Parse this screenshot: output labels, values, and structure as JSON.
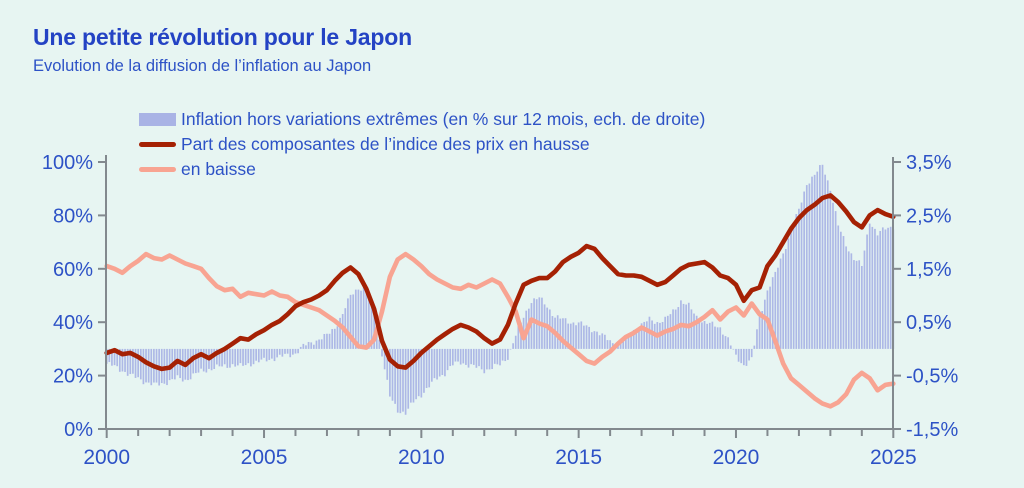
{
  "header": {
    "title": "Une petite révolution pour le Japon",
    "subtitle": "Evolution de la diffusion de l’inflation au Japon"
  },
  "legend": [
    {
      "label": "Inflation hors variations extrêmes (en % sur 12 mois, ech. de droite)",
      "swatch": "bar",
      "color": "#a9b3e5"
    },
    {
      "label": "Part des composantes de l’indice des prix en hausse",
      "swatch": "line",
      "color": "#a52104"
    },
    {
      "label": "en baisse",
      "swatch": "line",
      "color": "#f8a492"
    }
  ],
  "colors": {
    "background": "#e7f5f2",
    "text_blue": "#2d52c6",
    "axis_gray": "#82898e",
    "bars": "#a9b3e5",
    "hausse": "#a52104",
    "baisse": "#f8a492"
  },
  "chart_data": {
    "type": "bar+line combo",
    "title": "Evolution de la diffusion de l'inflation au Japon",
    "x_start": 2000,
    "x_end": 2025,
    "x_step_years": 0.25,
    "grid": false,
    "legend_position": "top-left",
    "x_ticks": [
      {
        "v": 2000,
        "label": "2000"
      },
      {
        "v": 2005,
        "label": "2005"
      },
      {
        "v": 2010,
        "label": "2010"
      },
      {
        "v": 2015,
        "label": "2015"
      },
      {
        "v": 2020,
        "label": "2020"
      },
      {
        "v": 2025,
        "label": "2025"
      }
    ],
    "left_axis": {
      "min": 0,
      "max": 100,
      "ticks": [
        {
          "v": 0,
          "label": "0%"
        },
        {
          "v": 20,
          "label": "20%"
        },
        {
          "v": 40,
          "label": "40%"
        },
        {
          "v": 60,
          "label": "60%"
        },
        {
          "v": 80,
          "label": "80%"
        },
        {
          "v": 100,
          "label": "100%"
        }
      ]
    },
    "right_axis": {
      "min": -1.5,
      "max": 3.5,
      "ticks": [
        {
          "v": -1.5,
          "label": "-1,5%"
        },
        {
          "v": -0.5,
          "label": "-0,5%"
        },
        {
          "v": 0.5,
          "label": "0,5%"
        },
        {
          "v": 1.5,
          "label": "1,5%"
        },
        {
          "v": 2.5,
          "label": "2,5%"
        },
        {
          "v": 3.5,
          "label": "3,5%"
        }
      ]
    },
    "series": [
      {
        "name": "Inflation hors variations extrêmes (en % sur 12 mois, ech. de droite)",
        "type": "bar",
        "axis": "right",
        "color": "#a9b3e5",
        "values": [
          -0.28,
          -0.33,
          -0.4,
          -0.5,
          -0.55,
          -0.62,
          -0.68,
          -0.65,
          -0.6,
          -0.55,
          -0.58,
          -0.5,
          -0.42,
          -0.38,
          -0.35,
          -0.32,
          -0.3,
          -0.33,
          -0.28,
          -0.25,
          -0.22,
          -0.18,
          -0.15,
          -0.12,
          -0.08,
          0.05,
          0.12,
          0.18,
          0.25,
          0.4,
          0.65,
          1.0,
          1.15,
          1.1,
          0.7,
          -0.1,
          -0.9,
          -1.15,
          -1.2,
          -1.0,
          -0.85,
          -0.7,
          -0.55,
          -0.45,
          -0.3,
          -0.25,
          -0.3,
          -0.35,
          -0.4,
          -0.35,
          -0.3,
          -0.15,
          0.25,
          0.6,
          0.9,
          0.95,
          0.8,
          0.6,
          0.55,
          0.5,
          0.48,
          0.42,
          0.35,
          0.25,
          0.15,
          0.05,
          0.2,
          0.35,
          0.45,
          0.55,
          0.5,
          0.55,
          0.7,
          0.9,
          0.8,
          0.6,
          0.5,
          0.45,
          0.4,
          0.18,
          -0.15,
          -0.3,
          -0.2,
          0.6,
          1.1,
          1.4,
          1.8,
          2.2,
          2.6,
          3.1,
          3.25,
          3.45,
          3.0,
          2.3,
          1.95,
          1.7,
          1.55,
          2.4,
          2.15,
          2.25,
          2.3
        ]
      },
      {
        "name": "Part des composantes de l’indice des prix en hausse",
        "type": "line",
        "axis": "left",
        "color": "#a52104",
        "values": [
          28.5,
          29.5,
          28,
          28.5,
          27,
          25,
          23.5,
          22.5,
          23,
          25.5,
          24,
          26.5,
          28,
          26.5,
          28.5,
          30,
          32,
          34,
          33.5,
          35.5,
          37,
          39,
          40.5,
          43,
          46,
          47.5,
          48.5,
          50,
          52,
          55.5,
          58.5,
          60.5,
          58,
          52.5,
          45,
          33,
          26,
          23.5,
          23,
          25.5,
          28.5,
          31,
          33.5,
          35.5,
          37.5,
          39,
          38,
          36.5,
          34,
          32,
          33.5,
          39,
          47,
          54,
          55.5,
          56.5,
          56.5,
          59,
          62.5,
          64.5,
          66,
          68.5,
          67.5,
          64,
          61,
          58,
          57.5,
          57.5,
          57,
          55.5,
          54,
          55,
          57.5,
          60,
          61.5,
          62,
          62.5,
          60.5,
          57.5,
          56.5,
          54,
          48,
          52,
          53,
          61,
          65,
          70,
          75,
          79,
          82,
          84,
          86.5,
          87.5,
          85,
          81.5,
          77.5,
          75.5,
          80,
          82,
          80.5,
          79.5
        ]
      },
      {
        "name": "en baisse",
        "type": "line",
        "axis": "left",
        "color": "#f8a492",
        "values": [
          61,
          60,
          58.5,
          61,
          63,
          65.5,
          64,
          63.5,
          65,
          63.5,
          62,
          61,
          60,
          56.5,
          53.5,
          52,
          52.5,
          49.5,
          51,
          50.5,
          50,
          51.5,
          50,
          49.5,
          47.5,
          46.5,
          45.5,
          44.5,
          42.5,
          40.5,
          38,
          34.5,
          31,
          30.5,
          33.5,
          44,
          57,
          63.5,
          65.5,
          63.5,
          61,
          58,
          56,
          54.5,
          53,
          52.5,
          54,
          53,
          54.5,
          56,
          54.5,
          49.5,
          44,
          34,
          41,
          39.5,
          38.5,
          36,
          33,
          30.5,
          28,
          25.5,
          24.5,
          27,
          29,
          32,
          34.5,
          36,
          38,
          36.5,
          35,
          36.5,
          37.5,
          39,
          38.5,
          40,
          42,
          44.5,
          41,
          44,
          45.5,
          42.5,
          47,
          43,
          41,
          33,
          24.5,
          19,
          16.5,
          14,
          11.5,
          9.5,
          8.5,
          10,
          13,
          18.5,
          21,
          19,
          14.5,
          16.5,
          17
        ]
      }
    ]
  }
}
